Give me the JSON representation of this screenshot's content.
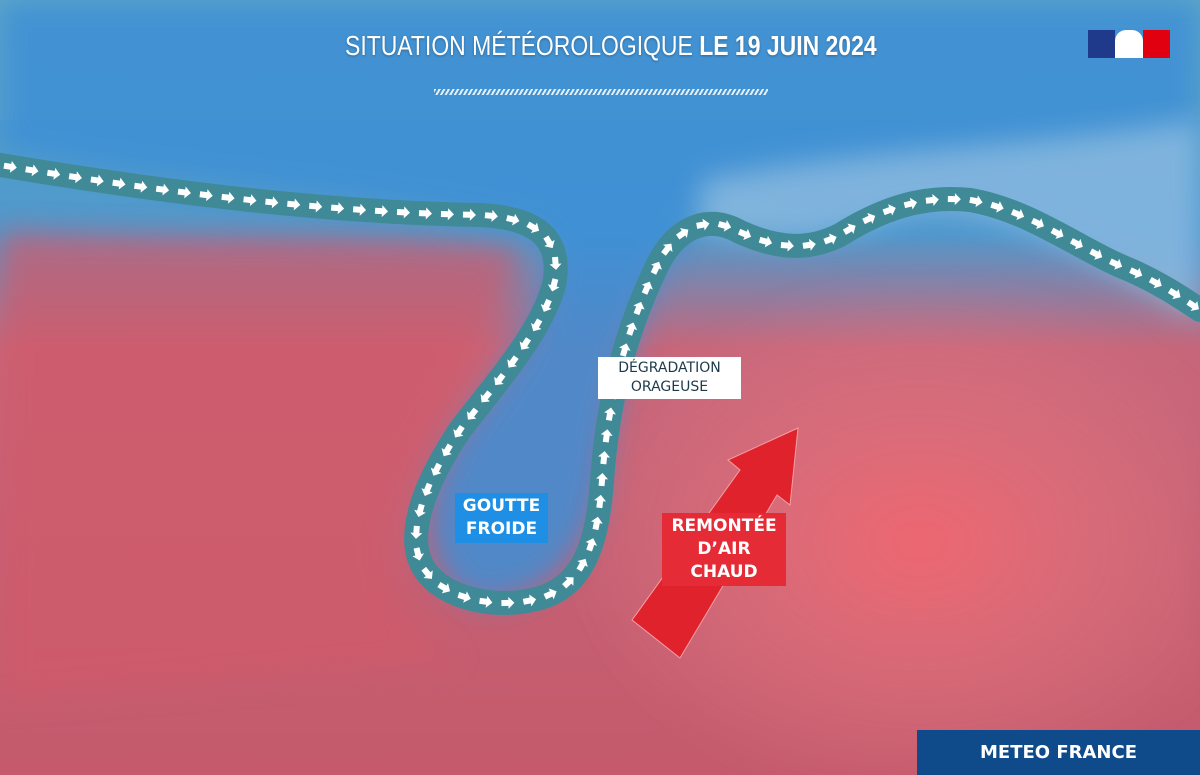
{
  "header": {
    "title_light": "SITUATION MÉTÉOROLOGIQUE",
    "title_bold": "LE 19 JUIN 2024"
  },
  "logo": {
    "name": "marianne-republique-francaise-logo",
    "colors": [
      "#1f3a8a",
      "#ffffff",
      "#e1000f"
    ]
  },
  "labels": {
    "degradation": [
      "DÉGRADATION",
      "ORAGEUSE"
    ],
    "goutte_froide": [
      "GOUTTE",
      "FROIDE"
    ],
    "remontee": [
      "REMONTÉE",
      "D’AIR CHAUD"
    ]
  },
  "footer": {
    "brand": "METEO FRANCE"
  },
  "colors": {
    "cold": "#2e86d4",
    "warm": "#e0505a",
    "jet_stream": "#3f8a96",
    "warm_arrow": "#e0222c",
    "brand": "#0f4a8a"
  }
}
